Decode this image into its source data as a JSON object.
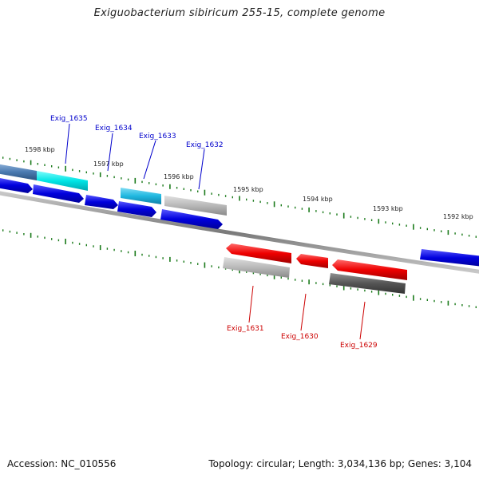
{
  "title": "Exiguobacterium sibiricum 255-15, complete genome",
  "footer": {
    "accession": "Accession: NC_010556",
    "summary": "Topology: circular; Length: 3,034,136 bp; Genes: 3,104"
  },
  "ruler": {
    "unit": "kbp",
    "labels": [
      "1598 kbp",
      "1597 kbp",
      "1596 kbp",
      "1595 kbp",
      "1594 kbp",
      "1593 kbp",
      "1592 kbp"
    ]
  },
  "genes_forward": [
    {
      "label": "Exig_1635",
      "color": "#00e5e5"
    },
    {
      "label": "Exig_1634",
      "color": "#0000dd"
    },
    {
      "label": "Exig_1633",
      "color": "#20b8e0"
    },
    {
      "label": "Exig_1632",
      "color": "#b4b4b4"
    }
  ],
  "genes_reverse": [
    {
      "label": "Exig_1631",
      "color": "#ee0000"
    },
    {
      "label": "Exig_1630",
      "color": "#ee0000"
    },
    {
      "label": "Exig_1629",
      "color": "#ee0000"
    }
  ],
  "colors": {
    "forward_label": "#0000cc",
    "reverse_label": "#cc0000",
    "backbone": "#8a8a8a",
    "tick": "#1a7a1a",
    "cds_blue": "#0000dd",
    "cds_red": "#ee0000",
    "cds_gray": "#b8b8b8",
    "cds_dark_gray": "#555555",
    "cds_cyan": "#00e5e5",
    "cds_teal": "#20b8e0",
    "cds_steel": "#4a7ab0"
  }
}
